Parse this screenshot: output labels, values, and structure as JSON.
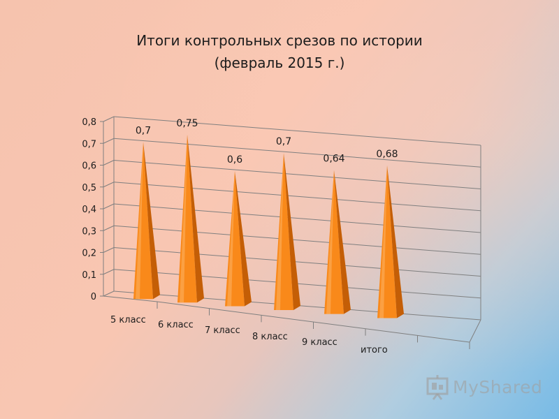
{
  "chart_data": {
    "type": "bar",
    "title": "Итоги контрольных срезов по истории",
    "subtitle": "(февраль 2015 г.)",
    "categories": [
      "5 класс",
      "6 класс",
      "7 класс",
      "8 класс",
      "9 класс",
      "итого"
    ],
    "values": [
      0.7,
      0.75,
      0.6,
      0.7,
      0.64,
      0.68
    ],
    "value_labels": [
      "0,7",
      "0,75",
      "0,6",
      "0,7",
      "0,64",
      "0,68"
    ],
    "yticks": [
      "0",
      "0,1",
      "0,2",
      "0,3",
      "0,4",
      "0,5",
      "0,6",
      "0,7",
      "0,8"
    ],
    "ylim": [
      0,
      0.8
    ],
    "xlabel": "",
    "ylabel": "",
    "grid": true,
    "legend": "none",
    "bar_shape": "3d-pyramid",
    "colors": {
      "bar_front": "#f9891a",
      "bar_side": "#c45e06",
      "bar_highlight": "#fdb266",
      "grid": "#7f7f7f",
      "text": "#1c1c1c"
    }
  },
  "watermark": {
    "text": "MyShared",
    "icon": "presentation-board-icon"
  }
}
